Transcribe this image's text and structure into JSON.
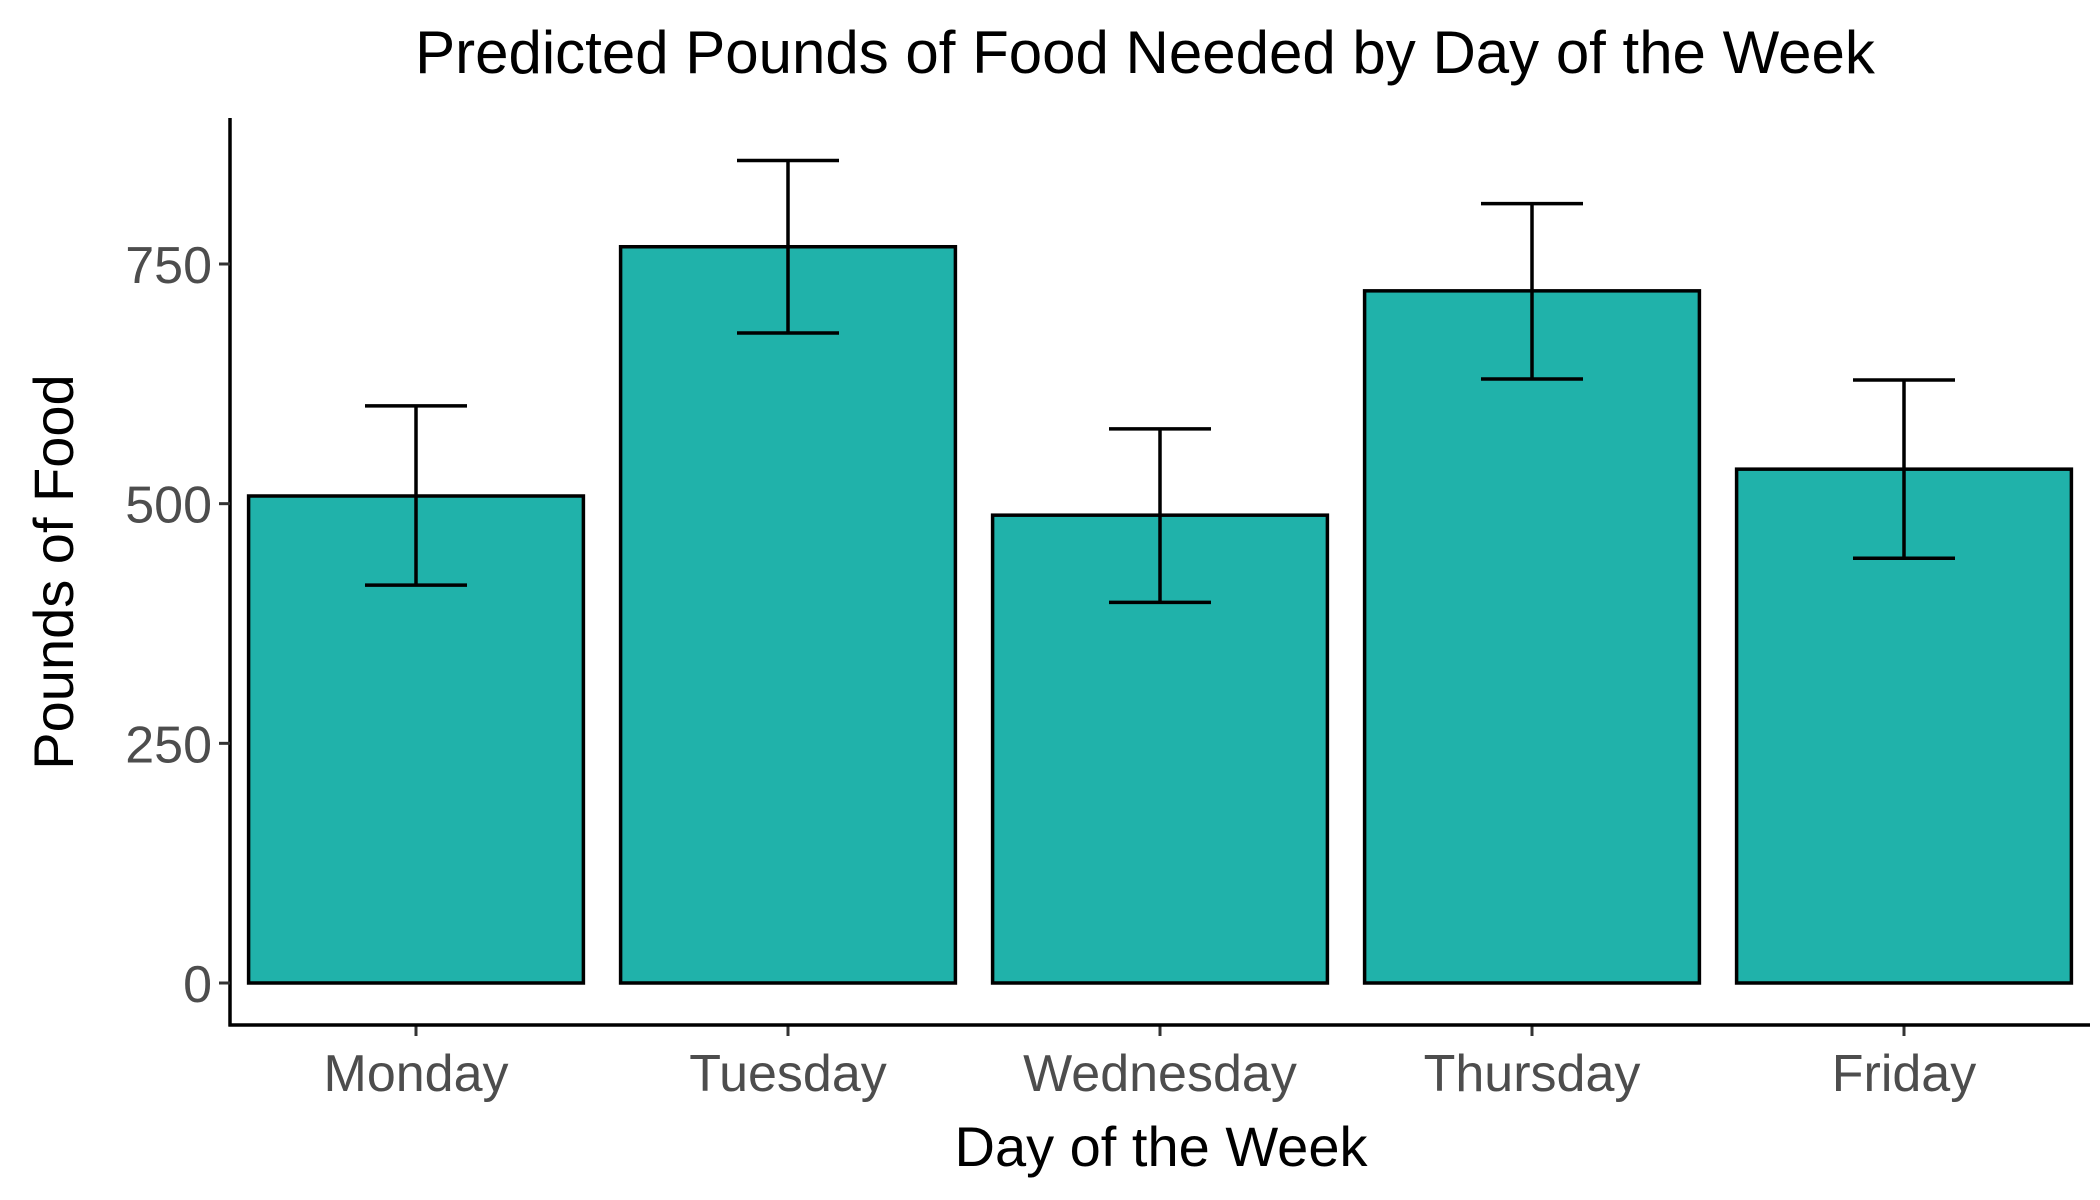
{
  "chart_data": {
    "type": "bar",
    "title": "Predicted Pounds of Food Needed by Day of the Week",
    "xlabel": "Day of the Week",
    "ylabel": "Pounds of Food",
    "categories": [
      "Monday",
      "Tuesday",
      "Wednesday",
      "Thursday",
      "Friday"
    ],
    "values": [
      508,
      768,
      488,
      722,
      536
    ],
    "error_lower": [
      415,
      678,
      397,
      630,
      443
    ],
    "error_upper": [
      602,
      858,
      578,
      813,
      629
    ],
    "yticks": [
      0,
      250,
      500,
      750
    ],
    "ytick_labels": [
      "0",
      "250",
      "500",
      "750"
    ],
    "ylim": [
      -43,
      902
    ],
    "grid": false,
    "legend": "none",
    "bar_color": "#20B2AA",
    "bar_outline_color": "#000000"
  }
}
